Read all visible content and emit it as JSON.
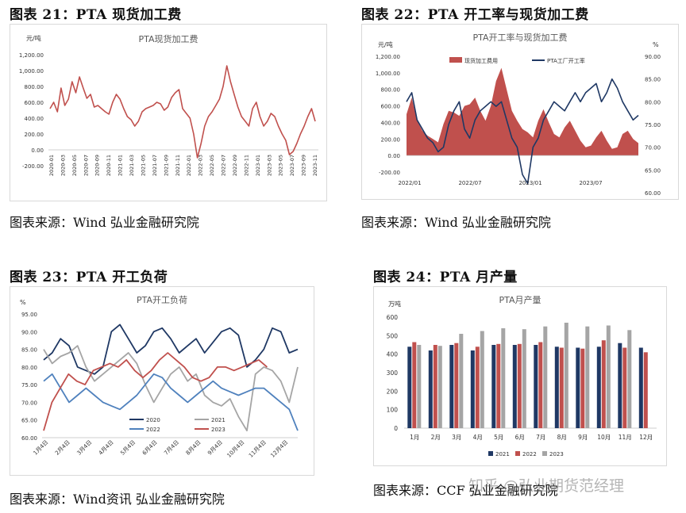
{
  "figures": [
    {
      "title": "图表 21：PTA 现货加工费",
      "source": "图表来源：Wind 弘业金融研究院",
      "chart_data": {
        "type": "line",
        "title": "PTA现货加工费",
        "ylabel": "元/吨",
        "ylim": [
          -200,
          1200
        ],
        "yticks": [
          "-200.00",
          "0.00",
          "200.00",
          "400.00",
          "600.00",
          "800.00",
          "1,000.00",
          "1,200.00"
        ],
        "xticks": [
          "2020-01",
          "2020-03",
          "2020-05",
          "2020-07",
          "2020-09",
          "2020-11",
          "2021-01",
          "2021-03",
          "2021-05",
          "2021-07",
          "2021-09",
          "2021-11",
          "2022-01",
          "2022-03",
          "2022-05",
          "2022-07",
          "2022-09",
          "2022-11",
          "2023-01",
          "2023-03",
          "2023-05",
          "2023-07",
          "2023-09",
          "2023-11"
        ],
        "series": [
          {
            "color": "#c0504d",
            "values": [
              520,
              600,
              480,
              780,
              560,
              640,
              860,
              720,
              920,
              780,
              650,
              700,
              540,
              560,
              520,
              480,
              450,
              600,
              700,
              640,
              520,
              420,
              380,
              300,
              360,
              480,
              520,
              540,
              560,
              600,
              580,
              500,
              540,
              660,
              720,
              760,
              520,
              460,
              400,
              200,
              -100,
              80,
              300,
              420,
              480,
              560,
              640,
              800,
              1060,
              860,
              700,
              540,
              420,
              360,
              300,
              520,
              600,
              420,
              300,
              360,
              460,
              420,
              300,
              200,
              120,
              -60,
              -20,
              80,
              200,
              300,
              420,
              520,
              360
            ]
          }
        ]
      }
    },
    {
      "title": "图表 22：PTA 开工率与现货加工费",
      "source": "图表来源：Wind 弘业金融研究院",
      "chart_data": {
        "type": "area",
        "title": "PTA开工率与现货加工费",
        "ylabel": "元/吨",
        "y2label": "%",
        "ylim": [
          -200,
          1200
        ],
        "y2lim": [
          60,
          90
        ],
        "yticks": [
          "-200.00",
          "0.00",
          "200.00",
          "400.00",
          "600.00",
          "800.00",
          "1,000.00",
          "1,200.00"
        ],
        "y2ticks": [
          "60.00",
          "65.00",
          "70.00",
          "75.00",
          "80.00",
          "85.00",
          "90.00"
        ],
        "xticks": [
          "2022/01",
          "2022/07",
          "2023/01",
          "2023/07"
        ],
        "series": [
          {
            "name": "现货加工费用",
            "type": "area",
            "color": "#c0504d",
            "values": [
              500,
              700,
              420,
              300,
              240,
              200,
              160,
              380,
              540,
              520,
              480,
              600,
              620,
              700,
              540,
              420,
              600,
              900,
              1060,
              800,
              540,
              420,
              320,
              280,
              220,
              420,
              560,
              400,
              260,
              220,
              340,
              420,
              300,
              180,
              100,
              120,
              220,
              300,
              180,
              80,
              100,
              260,
              300,
              200,
              150
            ]
          },
          {
            "name": "PTA工厂开工率",
            "type": "line",
            "color": "#1f3864",
            "values": [
              80,
              82,
              76,
              74,
              72,
              71,
              69,
              70,
              75,
              78,
              80,
              74,
              72,
              76,
              78,
              79,
              80,
              79,
              80,
              76,
              72,
              70,
              64,
              62,
              70,
              72,
              76,
              78,
              80,
              79,
              78,
              80,
              82,
              80,
              82,
              83,
              84,
              80,
              82,
              85,
              83,
              80,
              78,
              76,
              77
            ]
          }
        ]
      }
    },
    {
      "title": "图表 23：PTA 开工负荷",
      "source": "图表来源：Wind资讯 弘业金融研究院",
      "chart_data": {
        "type": "line",
        "title": "PTA开工负荷",
        "ylabel": "%",
        "ylim": [
          60,
          95
        ],
        "yticks": [
          "60.00",
          "65.00",
          "70.00",
          "75.00",
          "80.00",
          "85.00",
          "90.00",
          "95.00"
        ],
        "xticks": [
          "1月4日",
          "2月4日",
          "3月4日",
          "4月4日",
          "5月4日",
          "6月4日",
          "7月4日",
          "8月4日",
          "9月4日",
          "10月4日",
          "11月4日",
          "12月4日"
        ],
        "series": [
          {
            "name": "2020",
            "color": "#1f3864",
            "values": [
              82,
              84,
              88,
              86,
              80,
              79,
              78,
              80,
              90,
              92,
              88,
              84,
              86,
              90,
              91,
              88,
              84,
              86,
              88,
              84,
              87,
              90,
              91,
              89,
              80,
              82,
              85,
              91,
              90,
              84,
              85
            ]
          },
          {
            "name": "2021",
            "color": "#a5a5a5",
            "values": [
              85,
              81,
              83,
              84,
              86,
              80,
              76,
              78,
              80,
              82,
              84,
              81,
              75,
              70,
              74,
              78,
              80,
              76,
              78,
              72,
              70,
              69,
              71,
              66,
              62,
              78,
              80,
              79,
              76,
              70,
              80
            ]
          },
          {
            "name": "2022",
            "color": "#4f81bd",
            "values": [
              76,
              78,
              74,
              70,
              72,
              74,
              72,
              70,
              69,
              68,
              70,
              72,
              75,
              78,
              77,
              74,
              72,
              70,
              72,
              74,
              76,
              74,
              73,
              72,
              73,
              74,
              74,
              72,
              70,
              68,
              62
            ]
          },
          {
            "name": "2023",
            "color": "#c0504d",
            "values": [
              62,
              70,
              74,
              78,
              76,
              75,
              79,
              80,
              81,
              80,
              82,
              79,
              77,
              79,
              82,
              84,
              82,
              80,
              77,
              76,
              77,
              80,
              80,
              79,
              80,
              81,
              82,
              80
            ]
          }
        ]
      }
    },
    {
      "title": "图表 24：PTA 月产量",
      "source": "图表来源：CCF 弘业金融研究院",
      "chart_data": {
        "type": "bar",
        "title": "PTA月产量",
        "ylabel": "万吨",
        "ylim": [
          0,
          600
        ],
        "yticks": [
          "0",
          "100",
          "200",
          "300",
          "400",
          "500",
          "600"
        ],
        "categories": [
          "1月",
          "2月",
          "3月",
          "4月",
          "5月",
          "6月",
          "7月",
          "8月",
          "9月",
          "10月",
          "11月",
          "12月"
        ],
        "series": [
          {
            "name": "2021",
            "color": "#1f3864",
            "values": [
              440,
              420,
              450,
              420,
              450,
              450,
              450,
              440,
              435,
              440,
              460,
              435
            ]
          },
          {
            "name": "2022",
            "color": "#c0504d",
            "values": [
              465,
              450,
              460,
              440,
              455,
              455,
              465,
              435,
              430,
              475,
              435,
              410
            ]
          },
          {
            "name": "2023",
            "color": "#a5a5a5",
            "values": [
              450,
              445,
              510,
              525,
              540,
              535,
              550,
              570,
              550,
              555,
              530,
              null
            ]
          }
        ]
      }
    }
  ],
  "watermark": "知乎 @弘业期货范经理"
}
